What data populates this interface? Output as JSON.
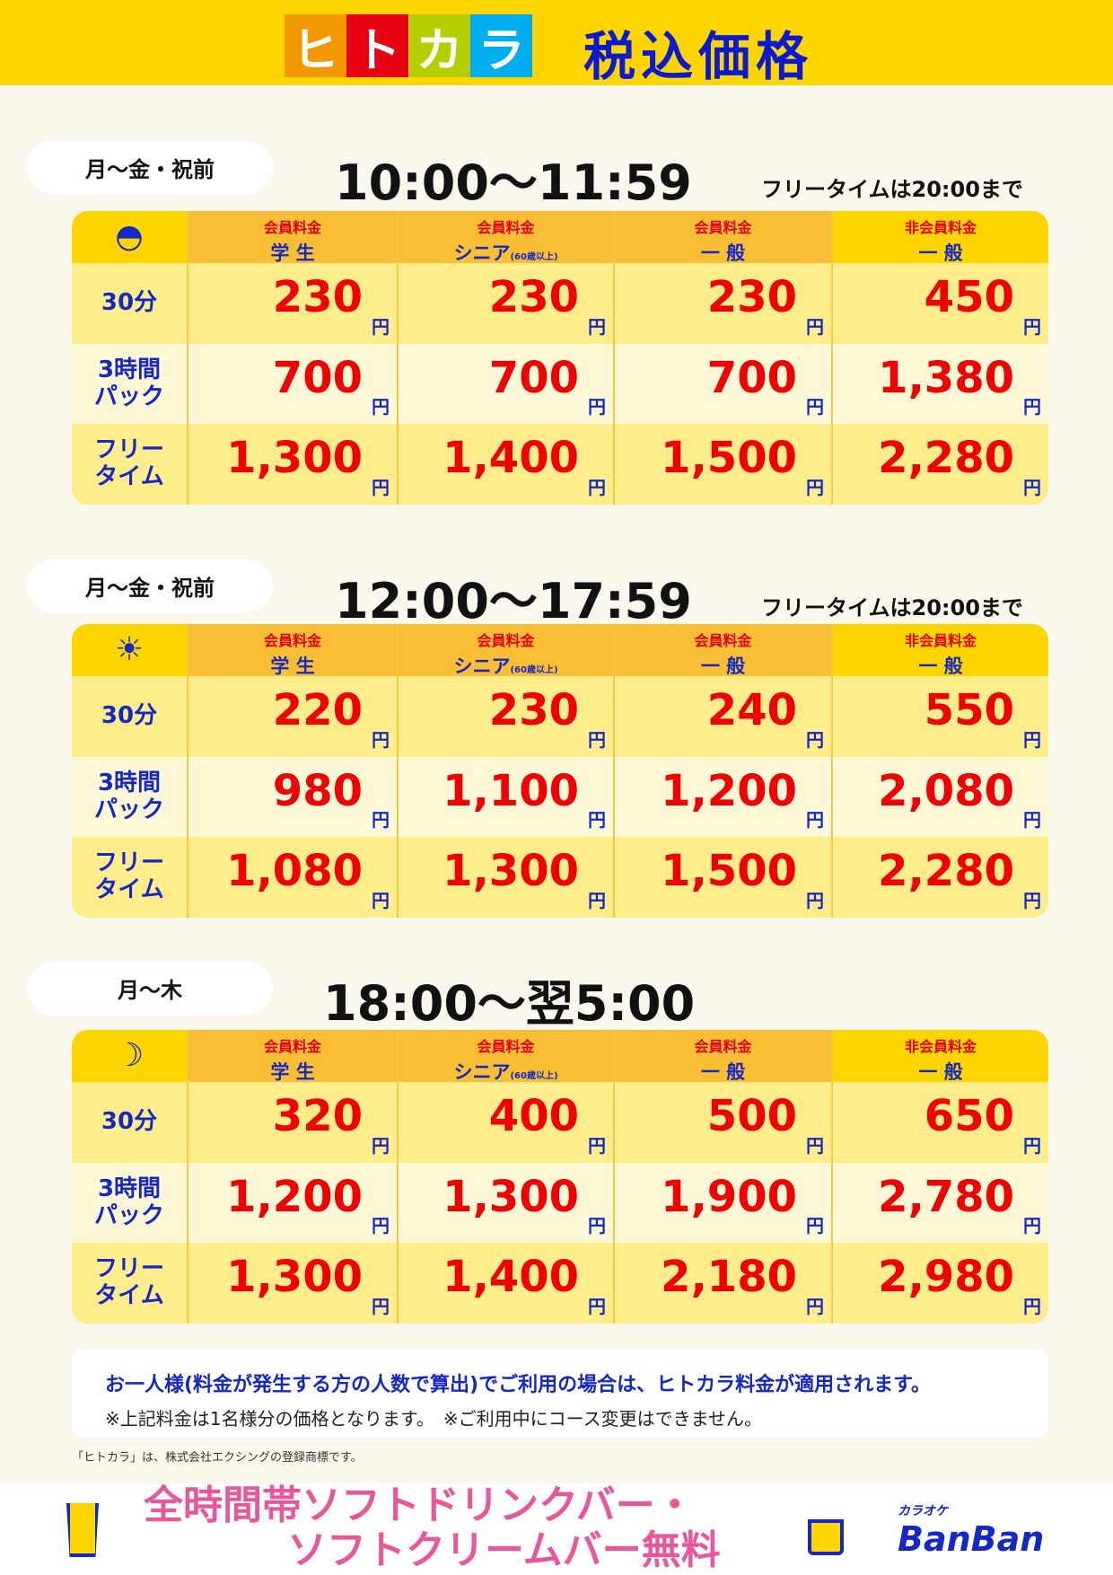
{
  "header": {
    "logo": [
      "ヒ",
      "ト",
      "カ",
      "ラ"
    ],
    "logo_colors": [
      "#F39800",
      "#E60012",
      "#B5CE00",
      "#00AEEF"
    ],
    "title": "税込価格"
  },
  "columns": [
    {
      "top": "会員料金",
      "bottom": "学 生",
      "note": ""
    },
    {
      "top": "会員料金",
      "bottom": "シニア",
      "note": "(60歳以上)"
    },
    {
      "top": "会員料金",
      "bottom": "一 般",
      "note": ""
    },
    {
      "top": "非会員料金",
      "bottom": "一 般",
      "note": ""
    }
  ],
  "row_labels": [
    [
      "30分"
    ],
    [
      "3時間",
      "パック"
    ],
    [
      "フリー",
      "タイム"
    ]
  ],
  "yen": "円",
  "sections": [
    {
      "days": "月～金・祝前",
      "time": "10:00～11:59",
      "free_note": "フリータイムは20:00まで",
      "icon": "sunrise-icon",
      "prices": [
        [
          "230",
          "230",
          "230",
          "450"
        ],
        [
          "700",
          "700",
          "700",
          "1,380"
        ],
        [
          "1,300",
          "1,400",
          "1,500",
          "2,280"
        ]
      ]
    },
    {
      "days": "月～金・祝前",
      "time": "12:00～17:59",
      "free_note": "フリータイムは20:00まで",
      "icon": "sun-icon",
      "prices": [
        [
          "220",
          "230",
          "240",
          "550"
        ],
        [
          "980",
          "1,100",
          "1,200",
          "2,080"
        ],
        [
          "1,080",
          "1,300",
          "1,500",
          "2,280"
        ]
      ]
    },
    {
      "days": "月～木",
      "time": "18:00～翌5:00",
      "free_note": "",
      "icon": "moon-icon",
      "prices": [
        [
          "320",
          "400",
          "500",
          "650"
        ],
        [
          "1,200",
          "1,300",
          "1,900",
          "2,780"
        ],
        [
          "1,300",
          "1,400",
          "2,180",
          "2,980"
        ]
      ]
    }
  ],
  "notes": {
    "main": "お一人様(料金が発生する方の人数で算出)でご利用の場合は、ヒトカラ料金が適用されます。",
    "sub": "※上記料金は1名様分の価格となります。　※ご利用中にコース変更はできません。"
  },
  "trademark": "「ヒトカラ」は、株式会社エクシングの登録商標です。",
  "footer": {
    "line1": "全時間帯ソフトドリンクバー・",
    "line2": "ソフトクリームバー無料",
    "brand_small": "カラオケ",
    "brand": "BanBan"
  }
}
